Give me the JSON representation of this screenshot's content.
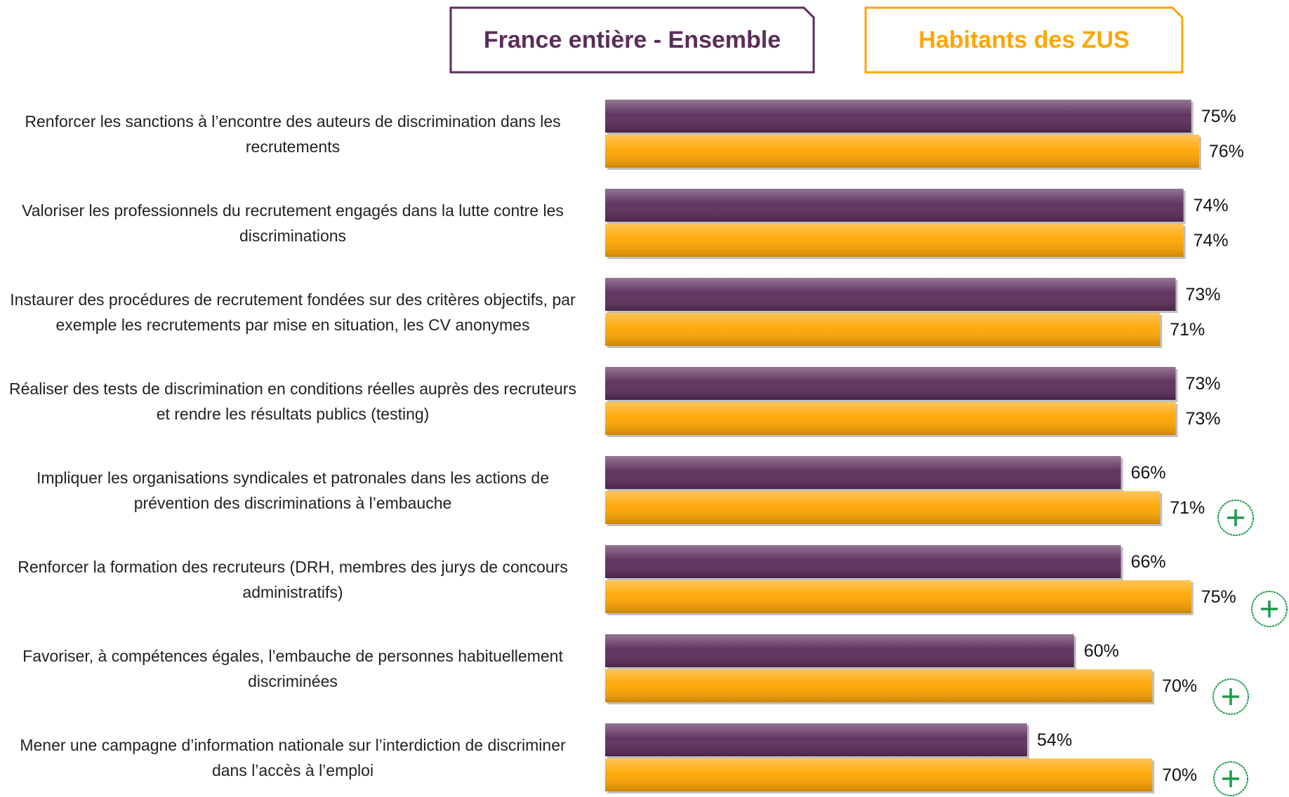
{
  "chart_data": {
    "type": "hbar",
    "categories": [
      "Renforcer les sanctions à l’encontre des auteurs de discrimination dans les recrutements",
      "Valoriser les professionnels du recrutement engagés dans la lutte contre les discriminations",
      "Instaurer des procédures de recrutement fondées sur des critères objectifs, par exemple les recrutements par mise en situation, les CV anonymes",
      "Réaliser des tests de discrimination en conditions réelles auprès des recruteurs et rendre les résultats publics (testing)",
      "Impliquer les organisations syndicales et patronales dans les actions de prévention des discriminations à l’embauche",
      "Renforcer la formation des recruteurs (DRH, membres des jurys de concours administratifs)",
      "Favoriser, à compétences égales, l’embauche de personnes habituellement discriminées",
      "Mener une campagne d’information nationale sur l’interdiction de discriminer dans l’accès à l’emploi"
    ],
    "series": [
      {
        "name": "France entière - Ensemble",
        "color": "#5b2c5a",
        "values": [
          75,
          74,
          73,
          73,
          66,
          66,
          60,
          54
        ],
        "value_labels": [
          "75%",
          "74%",
          "73%",
          "73%",
          "66%",
          "66%",
          "60%",
          "54%"
        ]
      },
      {
        "name": "Habitants des ZUS",
        "color": "#ffa500",
        "values": [
          76,
          74,
          71,
          73,
          71,
          75,
          70,
          70
        ],
        "value_labels": [
          "76%",
          "74%",
          "71%",
          "73%",
          "71%",
          "75%",
          "70%",
          "70%"
        ]
      }
    ],
    "xlim": [
      0,
      100
    ]
  }
}
